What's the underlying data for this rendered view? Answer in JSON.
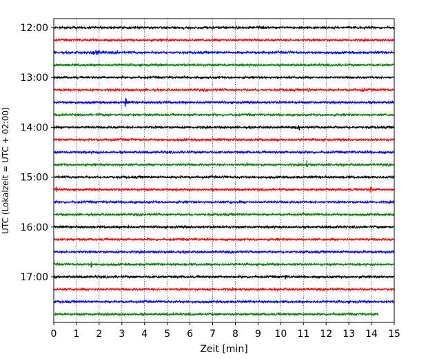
{
  "chart_data": {
    "type": "line",
    "title": "",
    "xlabel": "Zeit  [min]",
    "ylabel": "UTC (Lokalzeit = UTC + 02:00)",
    "xlim": [
      0,
      15
    ],
    "x_ticks": [
      "0",
      "1",
      "2",
      "3",
      "4",
      "5",
      "6",
      "7",
      "8",
      "9",
      "10",
      "11",
      "12",
      "13",
      "14",
      "15"
    ],
    "y_ticks": [
      "12:00",
      "13:00",
      "14:00",
      "15:00",
      "16:00",
      "17:00"
    ],
    "grid": "vertical dotted",
    "legend": "none",
    "trace_minutes": 15,
    "colors": [
      "#000000",
      "#ff0000",
      "#0000ff",
      "#008000"
    ],
    "series": [
      {
        "start": "12:00",
        "color": "#000000",
        "noise": 0.3,
        "events": [
          {
            "t": 11.8,
            "amp": 0.55,
            "dur": 0.15
          }
        ]
      },
      {
        "start": "12:15",
        "color": "#ff0000",
        "noise": 0.3,
        "events": [
          {
            "t": 5.2,
            "amp": 0.5,
            "dur": 0.1
          }
        ]
      },
      {
        "start": "12:30",
        "color": "#0000ff",
        "noise": 0.3,
        "events": [
          {
            "t": 1.8,
            "amp": 0.85,
            "dur": 1.0
          },
          {
            "t": 2.8,
            "amp": 0.7,
            "dur": 0.15
          },
          {
            "t": 9.2,
            "amp": 0.6,
            "dur": 0.1
          }
        ]
      },
      {
        "start": "12:45",
        "color": "#008000",
        "noise": 0.3,
        "events": [
          {
            "t": 7.5,
            "amp": 0.45,
            "dur": 0.3
          }
        ]
      },
      {
        "start": "13:00",
        "color": "#000000",
        "noise": 0.28,
        "events": []
      },
      {
        "start": "13:15",
        "color": "#ff0000",
        "noise": 0.3,
        "events": [
          {
            "t": 11.2,
            "amp": 0.6,
            "dur": 0.4
          },
          {
            "t": 13.6,
            "amp": 0.6,
            "dur": 0.4
          }
        ]
      },
      {
        "start": "13:30",
        "color": "#0000ff",
        "noise": 0.3,
        "events": [
          {
            "t": 3.15,
            "amp": 1.7,
            "dur": 0.15
          }
        ]
      },
      {
        "start": "13:45",
        "color": "#008000",
        "noise": 0.3,
        "events": [
          {
            "t": 13.9,
            "amp": 0.5,
            "dur": 0.1
          }
        ]
      },
      {
        "start": "14:00",
        "color": "#000000",
        "noise": 0.3,
        "events": [
          {
            "t": 10.8,
            "amp": 0.7,
            "dur": 0.2
          }
        ]
      },
      {
        "start": "14:15",
        "color": "#ff0000",
        "noise": 0.3,
        "events": []
      },
      {
        "start": "14:30",
        "color": "#0000ff",
        "noise": 0.3,
        "events": [
          {
            "t": 10.9,
            "amp": 0.6,
            "dur": 0.2
          }
        ]
      },
      {
        "start": "14:45",
        "color": "#008000",
        "noise": 0.3,
        "events": [
          {
            "t": 8.5,
            "amp": 0.6,
            "dur": 0.1
          },
          {
            "t": 11.15,
            "amp": 1.2,
            "dur": 0.1
          }
        ]
      },
      {
        "start": "15:00",
        "color": "#000000",
        "noise": 0.3,
        "events": [
          {
            "t": 14.3,
            "amp": 1.2,
            "dur": 0.1
          }
        ]
      },
      {
        "start": "15:15",
        "color": "#ff0000",
        "noise": 0.3,
        "events": [
          {
            "t": 0.1,
            "amp": 0.9,
            "dur": 0.2
          },
          {
            "t": 13.95,
            "amp": 1.3,
            "dur": 0.15
          }
        ]
      },
      {
        "start": "15:30",
        "color": "#0000ff",
        "noise": 0.3,
        "events": [
          {
            "t": 7.8,
            "amp": 1.1,
            "dur": 0.1
          }
        ]
      },
      {
        "start": "15:45",
        "color": "#008000",
        "noise": 0.3,
        "events": [
          {
            "t": 2.8,
            "amp": 0.5,
            "dur": 0.3
          }
        ]
      },
      {
        "start": "16:00",
        "color": "#000000",
        "noise": 0.3,
        "events": [
          {
            "t": 3.3,
            "amp": 1.2,
            "dur": 0.1
          }
        ]
      },
      {
        "start": "16:15",
        "color": "#ff0000",
        "noise": 0.3,
        "events": []
      },
      {
        "start": "16:30",
        "color": "#0000ff",
        "noise": 0.3,
        "events": []
      },
      {
        "start": "16:45",
        "color": "#008000",
        "noise": 0.3,
        "events": [
          {
            "t": 1.65,
            "amp": 1.1,
            "dur": 0.15
          }
        ]
      },
      {
        "start": "17:00",
        "color": "#000000",
        "noise": 0.3,
        "events": [
          {
            "t": 10.2,
            "amp": 0.9,
            "dur": 0.15
          }
        ]
      },
      {
        "start": "17:15",
        "color": "#ff0000",
        "noise": 0.3,
        "events": []
      },
      {
        "start": "17:30",
        "color": "#0000ff",
        "noise": 0.3,
        "events": []
      },
      {
        "start": "17:45",
        "color": "#008000",
        "noise": 0.3,
        "end_minute": 14.3,
        "events": []
      }
    ]
  }
}
